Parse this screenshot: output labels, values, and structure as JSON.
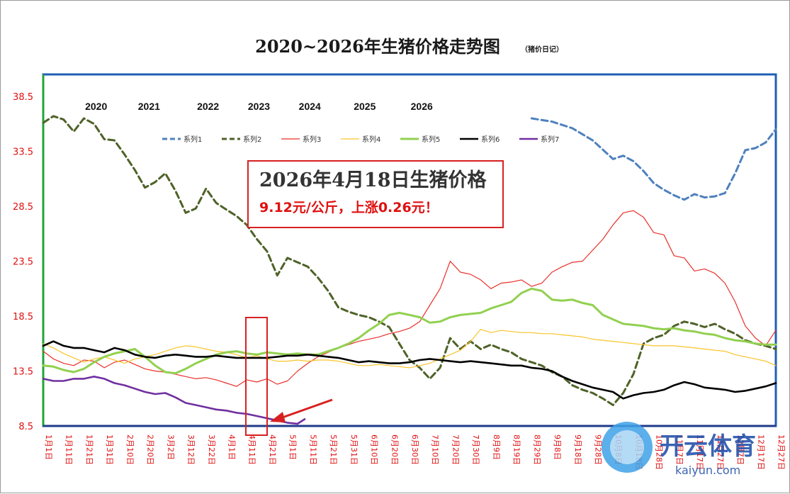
{
  "chart_data": {
    "type": "line",
    "title": "2020~2026年生猪价格走势图",
    "subtitle": "（猪价日记）",
    "ylim": [
      8.5,
      40.5
    ],
    "yticks": [
      "8.5",
      "13.5",
      "18.5",
      "23.5",
      "28.5",
      "33.5",
      "38.5"
    ],
    "xticks": [
      "1月1日",
      "1月11日",
      "1月21日",
      "1月31日",
      "2月10日",
      "2月20日",
      "3月2日",
      "3月12日",
      "3月22日",
      "4月1日",
      "4月11日",
      "4月21日",
      "5月1日",
      "5月11日",
      "5月21日",
      "5月31日",
      "6月10日",
      "6月20日",
      "6月30日",
      "7月10日",
      "7月20日",
      "7月30日",
      "8月9日",
      "8月19日",
      "8月29日",
      "9月8日",
      "9月18日",
      "9月28日",
      "10月8日",
      "10月18日",
      "10月28日",
      "11月7日",
      "11月17日",
      "11月27日",
      "12月7日",
      "12月17日",
      "12月27日"
    ],
    "year_labels": [
      "2020",
      "2021",
      "2022",
      "2023",
      "2024",
      "2025",
      "2026"
    ],
    "grid": false,
    "legend_position": "top-left",
    "series": [
      {
        "name": "系列1",
        "color": "#4f81bd",
        "dash": "dash",
        "width": 3,
        "x": [
          24,
          25,
          26,
          27,
          28,
          28.5,
          29,
          29.5,
          30,
          30.5,
          31,
          31.5,
          32,
          32.5,
          33,
          33.5,
          34,
          34.5,
          35,
          35.5,
          36
        ],
        "values": [
          36.5,
          36.2,
          35.6,
          34.5,
          32.8,
          33.1,
          32.6,
          31.7,
          30.6,
          30.0,
          29.5,
          29.1,
          29.6,
          29.3,
          29.4,
          29.7,
          31.5,
          33.6,
          33.8,
          34.3,
          35.5
        ]
      },
      {
        "name": "系列2",
        "color": "#4f6228",
        "dash": "dash",
        "width": 3,
        "x": [
          0,
          0.5,
          1,
          1.5,
          2,
          2.5,
          3,
          3.5,
          4,
          4.5,
          5,
          5.5,
          6,
          6.5,
          7,
          7.5,
          8,
          8.5,
          9,
          9.5,
          10,
          10.5,
          11,
          11.5,
          12,
          12.5,
          13,
          13.5,
          14,
          14.5,
          15,
          15.5,
          16,
          16.5,
          17,
          17.5,
          18,
          18.5,
          19,
          19.5,
          20,
          20.5,
          21,
          21.5,
          22,
          22.5,
          23,
          23.5,
          24,
          24.5,
          25,
          25.5,
          26,
          26.5,
          27,
          27.5,
          28,
          28.5,
          29,
          29.5,
          30,
          30.5,
          31,
          31.5,
          32,
          32.5,
          33,
          33.5,
          34,
          34.5,
          35,
          35.5,
          36
        ],
        "values": [
          36.1,
          36.7,
          36.4,
          35.3,
          36.5,
          36.0,
          34.6,
          34.5,
          33.2,
          31.8,
          30.2,
          30.7,
          31.5,
          29.9,
          27.9,
          28.3,
          30.1,
          28.8,
          28.2,
          27.6,
          26.8,
          25.5,
          24.4,
          22.2,
          23.8,
          23.4,
          23.0,
          22.0,
          20.8,
          19.3,
          18.9,
          18.6,
          18.4,
          18.0,
          17.5,
          16.0,
          14.5,
          13.8,
          12.8,
          13.8,
          16.5,
          15.5,
          16.2,
          15.5,
          15.9,
          15.5,
          15.2,
          14.6,
          14.3,
          14.0,
          13.4,
          13.0,
          12.2,
          11.8,
          11.5,
          11.0,
          10.4,
          11.5,
          13.2,
          16.0,
          16.5,
          16.8,
          17.6,
          18.0,
          17.8,
          17.5,
          17.8,
          17.3,
          16.9,
          16.3,
          16.0,
          15.8,
          15.5
        ]
      },
      {
        "name": "系列3",
        "color": "#e8302a",
        "dash": "solid",
        "width": 1.2,
        "x": [
          0,
          0.5,
          1,
          1.5,
          2,
          2.5,
          3,
          3.5,
          4,
          4.5,
          5,
          5.5,
          6,
          6.5,
          7,
          7.5,
          8,
          8.5,
          9,
          9.5,
          10,
          10.5,
          11,
          11.5,
          12,
          12.5,
          13,
          13.5,
          14,
          14.5,
          15,
          15.5,
          16,
          16.5,
          17,
          17.5,
          18,
          18.5,
          19,
          19.5,
          20,
          20.5,
          21,
          21.5,
          22,
          22.5,
          23,
          23.5,
          24,
          24.5,
          25,
          25.5,
          26,
          26.5,
          27,
          27.5,
          28,
          28.5,
          29,
          29.5,
          30,
          30.5,
          31,
          31.5,
          32,
          32.5,
          33,
          33.5,
          34,
          34.5,
          35,
          35.5,
          36
        ],
        "values": [
          15.3,
          14.6,
          14.2,
          14.0,
          14.5,
          14.4,
          13.8,
          14.3,
          14.5,
          14.1,
          13.7,
          13.5,
          13.4,
          13.2,
          13.0,
          12.8,
          12.9,
          12.7,
          12.4,
          12.1,
          12.7,
          12.5,
          12.8,
          12.3,
          12.6,
          13.5,
          14.2,
          14.8,
          15.2,
          15.6,
          15.9,
          16.2,
          16.4,
          16.6,
          16.9,
          17.1,
          17.4,
          18.0,
          19.5,
          21.0,
          23.5,
          22.5,
          22.3,
          21.8,
          21.0,
          21.5,
          21.6,
          21.8,
          21.2,
          21.5,
          22.5,
          23.0,
          23.4,
          23.5,
          24.5,
          25.5,
          26.8,
          27.9,
          28.1,
          27.5,
          26.1,
          25.9,
          24.0,
          23.8,
          22.6,
          22.8,
          22.4,
          21.5,
          19.8,
          17.6,
          16.5,
          15.8,
          17.2
        ]
      },
      {
        "name": "系列4",
        "color": "#fac42a",
        "dash": "solid",
        "width": 1.2,
        "x": [
          0,
          0.5,
          1,
          1.5,
          2,
          2.5,
          3,
          3.5,
          4,
          4.5,
          5,
          5.5,
          6,
          6.5,
          7,
          7.5,
          8,
          8.5,
          9,
          9.5,
          10,
          10.5,
          11,
          11.5,
          12,
          12.5,
          13,
          13.5,
          14,
          14.5,
          15,
          15.5,
          16,
          16.5,
          17,
          17.5,
          18,
          18.5,
          19,
          19.5,
          20,
          20.5,
          21,
          21.5,
          22,
          22.5,
          23,
          23.5,
          24,
          24.5,
          25,
          25.5,
          26,
          26.5,
          27,
          27.5,
          28,
          28.5,
          29,
          29.5,
          30,
          30.5,
          31,
          31.5,
          32,
          32.5,
          33,
          33.5,
          34,
          34.5,
          35,
          35.5,
          36
        ],
        "values": [
          16.0,
          15.6,
          15.1,
          14.7,
          14.3,
          14.6,
          14.8,
          14.5,
          14.2,
          14.6,
          14.8,
          15.0,
          15.3,
          15.6,
          15.8,
          15.7,
          15.5,
          15.3,
          15.2,
          15.0,
          14.7,
          14.9,
          14.6,
          14.4,
          14.4,
          14.5,
          14.4,
          14.5,
          14.5,
          14.4,
          14.2,
          14.0,
          14.0,
          14.1,
          14.0,
          13.9,
          13.8,
          14.0,
          14.2,
          14.6,
          15.0,
          15.4,
          16.2,
          17.3,
          17.0,
          17.2,
          17.1,
          17.0,
          17.0,
          16.9,
          16.9,
          16.8,
          16.7,
          16.6,
          16.4,
          16.3,
          16.2,
          16.1,
          16.0,
          15.9,
          15.8,
          15.8,
          15.8,
          15.7,
          15.6,
          15.5,
          15.4,
          15.3,
          15.0,
          14.8,
          14.6,
          14.4,
          14.0
        ]
      },
      {
        "name": "系列5",
        "color": "#92d050",
        "dash": "solid",
        "width": 3,
        "x": [
          0,
          0.5,
          1,
          1.5,
          2,
          2.5,
          3,
          3.5,
          4,
          4.5,
          5,
          5.5,
          6,
          6.5,
          7,
          7.5,
          8,
          8.5,
          9,
          9.5,
          10,
          10.5,
          11,
          11.5,
          12,
          12.5,
          13,
          13.5,
          14,
          14.5,
          15,
          15.5,
          16,
          16.5,
          17,
          17.5,
          18,
          18.5,
          19,
          19.5,
          20,
          20.5,
          21,
          21.5,
          22,
          22.5,
          23,
          23.5,
          24,
          24.5,
          25,
          25.5,
          26,
          26.5,
          27,
          27.5,
          28,
          28.5,
          29,
          29.5,
          30,
          30.5,
          31,
          31.5,
          32,
          32.5,
          33,
          33.5,
          34,
          34.5,
          35,
          35.5,
          36
        ],
        "values": [
          14.0,
          13.9,
          13.6,
          13.4,
          13.7,
          14.3,
          14.8,
          15.1,
          15.3,
          15.5,
          14.8,
          14.0,
          13.4,
          13.3,
          13.7,
          14.2,
          14.6,
          15.0,
          15.2,
          15.3,
          15.1,
          15.0,
          15.2,
          15.1,
          15.0,
          15.1,
          15.0,
          15.0,
          15.3,
          15.6,
          16.0,
          16.5,
          17.2,
          17.8,
          18.6,
          18.8,
          18.6,
          18.4,
          17.9,
          18.0,
          18.4,
          18.6,
          18.7,
          18.8,
          19.2,
          19.5,
          19.8,
          20.6,
          21.0,
          20.8,
          20.0,
          19.9,
          20.0,
          19.7,
          19.5,
          18.6,
          18.2,
          17.8,
          17.7,
          17.6,
          17.4,
          17.3,
          17.4,
          17.2,
          17.1,
          16.9,
          16.8,
          16.5,
          16.3,
          16.2,
          16.0,
          15.9,
          15.9
        ]
      },
      {
        "name": "系列6",
        "color": "#000000",
        "dash": "solid",
        "width": 2.6,
        "x": [
          0,
          0.5,
          1,
          1.5,
          2,
          2.5,
          3,
          3.5,
          4,
          4.5,
          5,
          5.5,
          6,
          6.5,
          7,
          7.5,
          8,
          8.5,
          9,
          9.5,
          10,
          10.5,
          11,
          11.5,
          12,
          12.5,
          13,
          13.5,
          14,
          14.5,
          15,
          15.5,
          16,
          16.5,
          17,
          17.5,
          18,
          18.5,
          19,
          19.5,
          20,
          20.5,
          21,
          21.5,
          22,
          22.5,
          23,
          23.5,
          24,
          24.5,
          25,
          25.5,
          26,
          26.5,
          27,
          27.5,
          28,
          28.5,
          29,
          29.5,
          30,
          30.5,
          31,
          31.5,
          32,
          32.5,
          33,
          33.5,
          34,
          34.5,
          35,
          35.5,
          36
        ],
        "values": [
          15.8,
          16.2,
          15.8,
          15.6,
          15.6,
          15.4,
          15.2,
          15.6,
          15.4,
          15.0,
          14.8,
          14.7,
          14.9,
          15.0,
          14.9,
          14.8,
          14.8,
          14.9,
          14.8,
          14.7,
          14.7,
          14.7,
          14.7,
          14.8,
          14.9,
          14.9,
          15.0,
          14.9,
          14.8,
          14.7,
          14.5,
          14.3,
          14.4,
          14.3,
          14.2,
          14.2,
          14.3,
          14.5,
          14.6,
          14.5,
          14.4,
          14.3,
          14.4,
          14.3,
          14.2,
          14.1,
          14.0,
          14.0,
          13.8,
          13.7,
          13.5,
          13.0,
          12.6,
          12.3,
          12.0,
          11.8,
          11.6,
          11.0,
          11.3,
          11.5,
          11.6,
          11.8,
          12.2,
          12.5,
          12.3,
          12.0,
          11.9,
          11.8,
          11.6,
          11.7,
          11.9,
          12.1,
          12.4
        ]
      },
      {
        "name": "系列7",
        "color": "#7030a0",
        "dash": "solid",
        "width": 2.6,
        "x": [
          0,
          0.5,
          1,
          1.5,
          2,
          2.5,
          3,
          3.5,
          4,
          4.5,
          5,
          5.5,
          6,
          6.5,
          7,
          7.5,
          8,
          8.5,
          9,
          9.5,
          10,
          10.5,
          11,
          11.5,
          12,
          12.5,
          12.85
        ],
        "values": [
          12.8,
          12.6,
          12.6,
          12.8,
          12.8,
          13.0,
          12.8,
          12.4,
          12.2,
          11.9,
          11.6,
          11.4,
          11.5,
          11.1,
          10.6,
          10.4,
          10.2,
          10.0,
          9.9,
          9.7,
          9.6,
          9.4,
          9.2,
          9.0,
          8.8,
          8.7,
          9.12
        ]
      }
    ]
  },
  "annotation": {
    "title": "2026年4月18日生猪价格",
    "subtitle": "9.12元/公斤，上涨0.26元！"
  },
  "watermark": {
    "brand": "开云体育",
    "url": "kaiyun.com"
  }
}
